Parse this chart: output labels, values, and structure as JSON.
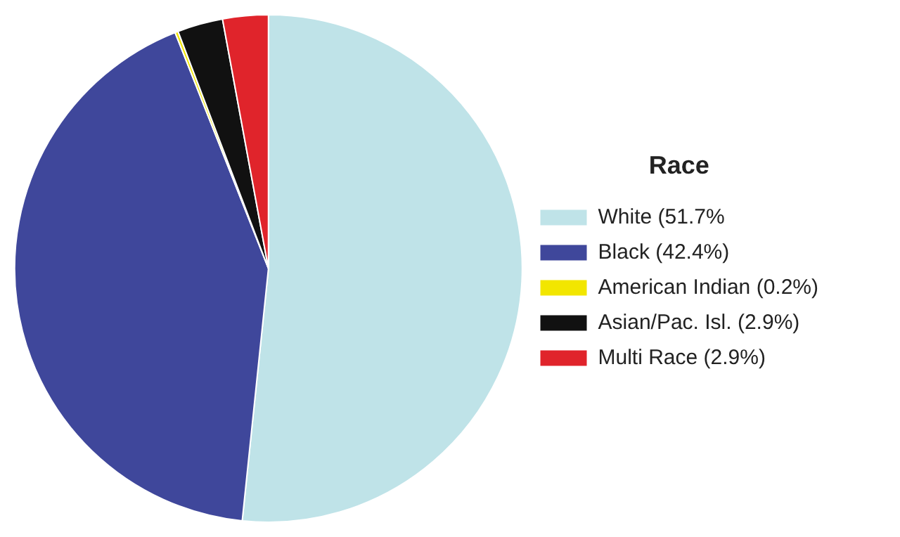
{
  "chart_data": {
    "type": "pie",
    "legend_title": "Race",
    "categories": [
      "White (51.7%",
      "Black (42.4%)",
      "American Indian (0.2%)",
      "Asian/Pac. Isl. (2.9%)",
      "Multi Race (2.9%)"
    ],
    "values": [
      51.7,
      42.4,
      0.2,
      2.9,
      2.9
    ],
    "colors": [
      "#bfe3e8",
      "#3f479b",
      "#f2e600",
      "#111111",
      "#e0242b"
    ],
    "legend": "right"
  }
}
